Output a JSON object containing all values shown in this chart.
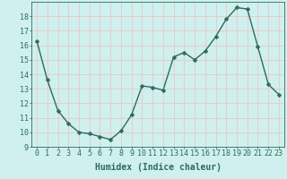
{
  "x": [
    0,
    1,
    2,
    3,
    4,
    5,
    6,
    7,
    8,
    9,
    10,
    11,
    12,
    13,
    14,
    15,
    16,
    17,
    18,
    19,
    20,
    21,
    22,
    23
  ],
  "y": [
    16.3,
    13.6,
    11.5,
    10.6,
    10.0,
    9.9,
    9.7,
    9.5,
    10.1,
    11.2,
    13.2,
    13.1,
    12.9,
    15.2,
    15.5,
    15.0,
    15.6,
    16.6,
    17.8,
    18.6,
    18.5,
    15.9,
    13.3,
    12.6
  ],
  "line_color": "#2d6b5e",
  "marker": "D",
  "marker_size": 2.5,
  "line_width": 1.0,
  "bg_color": "#cff0ee",
  "grid_color": "#e8c8c8",
  "axis_color": "#2d6b5e",
  "xlabel": "Humidex (Indice chaleur)",
  "xlabel_fontsize": 7,
  "tick_fontsize": 6,
  "ylim": [
    9,
    19
  ],
  "yticks": [
    9,
    10,
    11,
    12,
    13,
    14,
    15,
    16,
    17,
    18
  ],
  "xticks": [
    0,
    1,
    2,
    3,
    4,
    5,
    6,
    7,
    8,
    9,
    10,
    11,
    12,
    13,
    14,
    15,
    16,
    17,
    18,
    19,
    20,
    21,
    22,
    23
  ]
}
